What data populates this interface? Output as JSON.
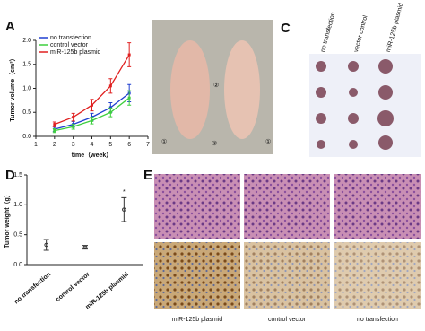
{
  "panels": {
    "a": "A",
    "b": "B",
    "c": "C",
    "d": "D",
    "e": "E"
  },
  "chart_data": [
    {
      "type": "line",
      "x": [
        2,
        3,
        4,
        5,
        6
      ],
      "xlim": [
        1,
        7
      ],
      "xticks": [
        1,
        2,
        3,
        4,
        5,
        6,
        7
      ],
      "ylim": [
        0,
        2
      ],
      "yticks": [
        {
          "value": 0,
          "label": "0.0"
        },
        {
          "value": 0.5,
          "label": "0.5"
        },
        {
          "value": 1,
          "label": "1.0"
        },
        {
          "value": 1.5,
          "label": "1.5"
        },
        {
          "value": 2,
          "label": "2.0"
        }
      ],
      "x_label": "time（week）",
      "y_label": "Tumor volume（cm³）",
      "legend": "upper left",
      "series": [
        {
          "name": "no transfection",
          "color": "#1f3fd0",
          "values": [
            0.15,
            0.25,
            0.4,
            0.6,
            0.9
          ],
          "errors": [
            0.05,
            0.06,
            0.08,
            0.1,
            0.18
          ]
        },
        {
          "name": "control vector",
          "color": "#3ecf3e",
          "values": [
            0.12,
            0.2,
            0.33,
            0.5,
            0.8
          ],
          "errors": [
            0.04,
            0.05,
            0.07,
            0.09,
            0.15
          ]
        },
        {
          "name": "miR-125b plasmid",
          "color": "#e02020",
          "values": [
            0.25,
            0.4,
            0.65,
            1.05,
            1.7
          ],
          "errors": [
            0.05,
            0.08,
            0.12,
            0.15,
            0.25
          ]
        }
      ]
    },
    {
      "type": "errorpoint",
      "categories": [
        "no transfection",
        "control vector",
        "miR-125b plasmid"
      ],
      "values": [
        0.33,
        0.29,
        0.92
      ],
      "errors": [
        0.09,
        0.03,
        0.2
      ],
      "color": "#333333",
      "ylim": [
        0,
        1.5
      ],
      "yticks": [
        {
          "value": 0,
          "label": "0.0"
        },
        {
          "value": 0.5,
          "label": "0.5"
        },
        {
          "value": 1,
          "label": "1.0"
        },
        {
          "value": 1.5,
          "label": "1.5"
        }
      ],
      "y_label": "Tumor weight（g）",
      "annotation": "*"
    }
  ],
  "figure_b": {
    "markers": [
      "①",
      "②",
      "③",
      "①"
    ]
  },
  "figure_c": {
    "columns": [
      "no transfection",
      "vector control",
      "miR-125b plasmid"
    ]
  },
  "figure_e": {
    "columns": [
      "miR-125b plasmid",
      "control vector",
      "no transfection"
    ]
  }
}
